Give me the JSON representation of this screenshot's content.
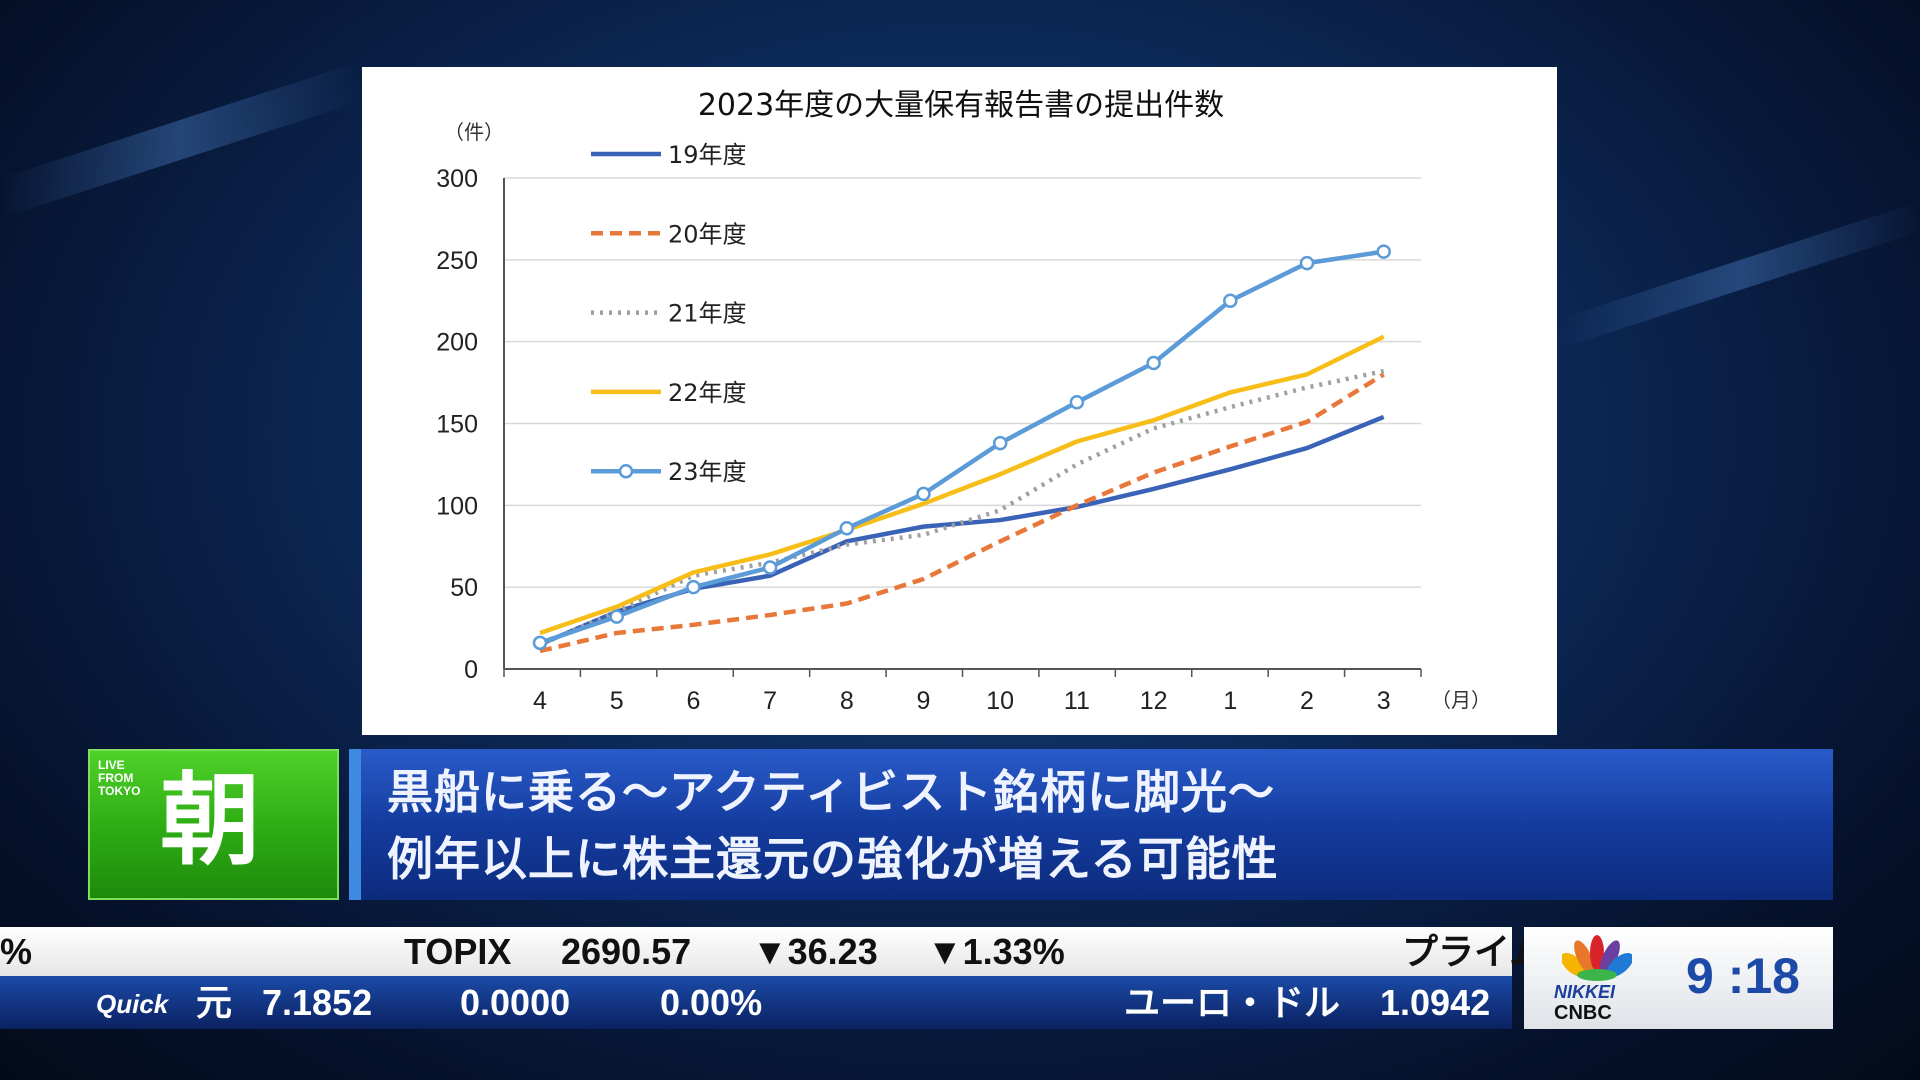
{
  "chart_data": {
    "type": "line",
    "title": "2023年度の大量保有報告書の提出件数",
    "ylabel": "（件）",
    "xlabel": "（月）",
    "categories": [
      "4",
      "5",
      "6",
      "7",
      "8",
      "9",
      "10",
      "11",
      "12",
      "1",
      "2",
      "3"
    ],
    "ylim": [
      0,
      300
    ],
    "yticks": [
      0,
      50,
      100,
      150,
      200,
      250,
      300
    ],
    "grid": true,
    "legend_position": "top-left",
    "series": [
      {
        "name": "19年度",
        "color": "#3a63b8",
        "style": "solid",
        "markers": false,
        "values": [
          15,
          35,
          49,
          57,
          78,
          87,
          91,
          99,
          110,
          122,
          135,
          154
        ]
      },
      {
        "name": "20年度",
        "color": "#e8773a",
        "style": "dashed",
        "markers": false,
        "values": [
          11,
          22,
          27,
          33,
          40,
          55,
          78,
          100,
          120,
          136,
          151,
          180
        ]
      },
      {
        "name": "21年度",
        "color": "#a0a0a0",
        "style": "dotted",
        "markers": false,
        "values": [
          15,
          35,
          57,
          65,
          76,
          82,
          97,
          125,
          147,
          160,
          172,
          182
        ]
      },
      {
        "name": "22年度",
        "color": "#f7be1a",
        "style": "solid",
        "markers": false,
        "values": [
          22,
          38,
          59,
          70,
          85,
          101,
          119,
          139,
          152,
          169,
          180,
          203
        ]
      },
      {
        "name": "23年度",
        "color": "#5b9bd8",
        "style": "solid",
        "markers": true,
        "values": [
          16,
          32,
          50,
          62,
          86,
          107,
          138,
          163,
          187,
          225,
          248,
          255
        ]
      }
    ]
  },
  "program": {
    "live": "LIVE FROM TOKYO",
    "name": "朝"
  },
  "headline": {
    "line1": "黒船に乗る～アクティビスト銘柄に脚光～",
    "line2": "例年以上に株主還元の強化が増える可能性"
  },
  "ticker_top": {
    "prev": "%",
    "index": "TOPIX",
    "value": "2690.57",
    "change": "▼36.23",
    "pct": "▼1.33%",
    "next": "プライム"
  },
  "ticker_bottom": {
    "source": "Quick",
    "currency": "元",
    "value": "7.1852",
    "change": "0.0000",
    "pct": "0.00%",
    "next_label": "ユーロ・ドル",
    "next_value": "1.0942"
  },
  "logo": {
    "line1": "NIKKEI",
    "line2": "CNBC"
  },
  "clock": "9 :18"
}
